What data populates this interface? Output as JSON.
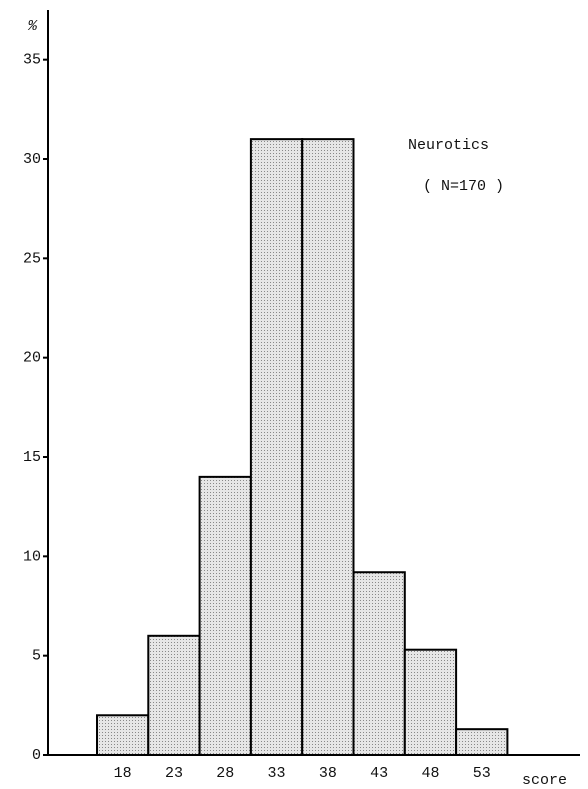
{
  "chart_data": {
    "type": "bar",
    "y_label": "%",
    "x_label": "score",
    "annotations": [
      "Neurotics",
      "( N=170 )"
    ],
    "categories": [
      "18",
      "23",
      "28",
      "33",
      "38",
      "43",
      "48",
      "53"
    ],
    "values": [
      2,
      6,
      14,
      31,
      31,
      9.2,
      5.3,
      1.3
    ],
    "color": "#dcdcdc",
    "ylim": [
      0,
      37.5
    ],
    "yticks": [
      0,
      5,
      10,
      15,
      20,
      25,
      30,
      35
    ],
    "grid": false
  }
}
